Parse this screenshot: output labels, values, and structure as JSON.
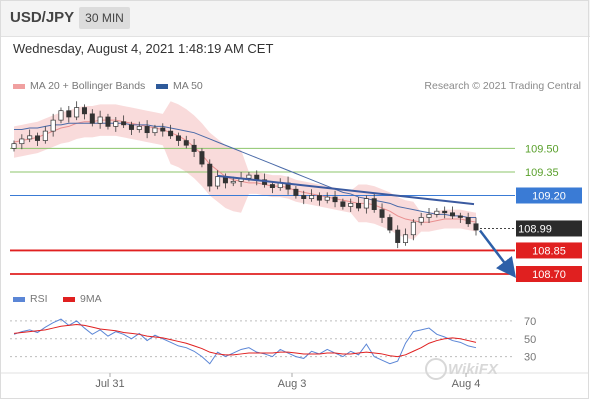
{
  "header": {
    "symbol": "USD/JPY",
    "timeframe": "30 MIN"
  },
  "datetime": "Wednesday, August 4, 2021 1:48:19 AM CET",
  "credit": "Research © 2021 Trading Central",
  "legend": [
    {
      "label": "MA 20 + Bollinger Bands",
      "color": "#f0a0a0"
    },
    {
      "label": "MA 50",
      "color": "#2e5a9a"
    }
  ],
  "rsi_legend": [
    {
      "label": "RSI",
      "color": "#5b86d6"
    },
    {
      "label": "9MA",
      "color": "#e02020"
    }
  ],
  "watermark": "WikiFX",
  "chart_data": [
    {
      "type": "line",
      "ylim": [
        108.63,
        109.84
      ],
      "current_price": {
        "label": "108.99",
        "value": 108.99
      },
      "levels": [
        {
          "label": "109.50",
          "value": 109.5,
          "kind": "resistance",
          "color": "#8dc46b",
          "label_color": "#5aa02c"
        },
        {
          "label": "109.35",
          "value": 109.35,
          "kind": "resistance",
          "color": "#8dc46b",
          "label_color": "#5aa02c"
        },
        {
          "label": "109.20",
          "value": 109.2,
          "kind": "pivot",
          "color": "#3a7bd5",
          "label_color": "#ffffff",
          "label_bg": "#3a7bd5"
        },
        {
          "label": "108.85",
          "value": 108.85,
          "kind": "support",
          "color": "#e02020",
          "label_color": "#ffffff",
          "label_bg": "#e02020"
        },
        {
          "label": "108.70",
          "value": 108.7,
          "kind": "support",
          "color": "#e02020",
          "label_color": "#ffffff",
          "label_bg": "#e02020"
        }
      ],
      "x_ticks": [
        "Jul 31",
        "Aug 3",
        "Aug 4"
      ],
      "price_series": [
        109.53,
        109.56,
        109.58,
        109.55,
        109.61,
        109.68,
        109.74,
        109.7,
        109.76,
        109.72,
        109.66,
        109.7,
        109.64,
        109.67,
        109.65,
        109.62,
        109.64,
        109.6,
        109.63,
        109.61,
        109.58,
        109.55,
        109.52,
        109.48,
        109.4,
        109.26,
        109.32,
        109.28,
        109.29,
        109.31,
        109.33,
        109.3,
        109.27,
        109.25,
        109.28,
        109.24,
        109.2,
        109.18,
        109.2,
        109.17,
        109.19,
        109.16,
        109.13,
        109.15,
        109.12,
        109.18,
        109.11,
        109.06,
        108.98,
        108.9,
        108.95,
        109.03,
        109.06,
        109.08,
        109.1,
        109.09,
        109.07,
        109.06,
        109.02,
        108.98
      ],
      "ma50": [
        109.62,
        109.62,
        109.63,
        109.63,
        109.64,
        109.65,
        109.65,
        109.66,
        109.66,
        109.66,
        109.66,
        109.66,
        109.66,
        109.66,
        109.66,
        109.65,
        109.65,
        109.65,
        109.64,
        109.64,
        109.63,
        109.62,
        109.61,
        109.6,
        109.58,
        109.56,
        109.54,
        109.52,
        109.5,
        109.48,
        109.46,
        109.44,
        109.42,
        109.4,
        109.38,
        109.36,
        109.34,
        109.32,
        109.3,
        109.28,
        109.26,
        109.24,
        109.22,
        109.21,
        109.19,
        109.18,
        109.17,
        109.16,
        109.15,
        109.13,
        109.12,
        109.11,
        109.1,
        109.09,
        109.08,
        109.08,
        109.07,
        109.07,
        109.06,
        109.06
      ],
      "ma20": [
        109.54,
        109.55,
        109.56,
        109.57,
        109.59,
        109.61,
        109.63,
        109.64,
        109.66,
        109.67,
        109.67,
        109.68,
        109.68,
        109.68,
        109.67,
        109.66,
        109.65,
        109.64,
        109.63,
        109.62,
        109.6,
        109.58,
        109.55,
        109.51,
        109.46,
        109.4,
        109.36,
        109.32,
        109.3,
        109.29,
        109.28,
        109.28,
        109.27,
        109.26,
        109.26,
        109.25,
        109.23,
        109.22,
        109.21,
        109.2,
        109.19,
        109.18,
        109.17,
        109.16,
        109.15,
        109.15,
        109.14,
        109.12,
        109.1,
        109.07,
        109.05,
        109.04,
        109.03,
        109.03,
        109.04,
        109.05,
        109.05,
        109.05,
        109.04,
        109.03
      ]
    },
    {
      "type": "line",
      "title": "RSI",
      "ylim": [
        15,
        80
      ],
      "y_ticks": [
        "70",
        "50",
        "30"
      ],
      "series": [
        {
          "name": "RSI",
          "values": [
            55,
            58,
            60,
            57,
            63,
            68,
            72,
            65,
            70,
            62,
            55,
            60,
            53,
            58,
            55,
            50,
            56,
            48,
            54,
            50,
            46,
            42,
            40,
            36,
            30,
            22,
            35,
            30,
            34,
            38,
            40,
            35,
            33,
            30,
            38,
            34,
            30,
            28,
            36,
            33,
            38,
            34,
            30,
            36,
            32,
            44,
            30,
            26,
            22,
            25,
            45,
            58,
            60,
            62,
            55,
            52,
            48,
            46,
            42,
            40
          ]
        },
        {
          "name": "9MA",
          "values": [
            56,
            57,
            58,
            59,
            60,
            62,
            64,
            65,
            66,
            65,
            63,
            61,
            60,
            59,
            57,
            56,
            55,
            53,
            52,
            51,
            49,
            47,
            45,
            42,
            39,
            35,
            33,
            32,
            32,
            33,
            34,
            34,
            34,
            34,
            35,
            35,
            34,
            33,
            33,
            33,
            34,
            34,
            33,
            33,
            34,
            35,
            34,
            33,
            31,
            30,
            32,
            36,
            40,
            45,
            48,
            50,
            51,
            50,
            48,
            46
          ]
        }
      ]
    }
  ]
}
